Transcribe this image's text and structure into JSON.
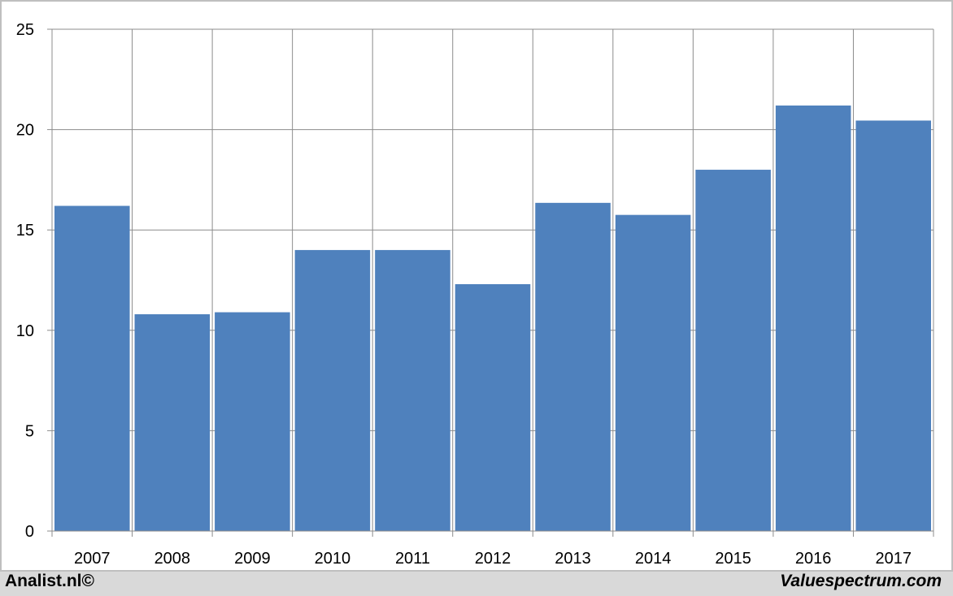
{
  "chart_data": {
    "type": "bar",
    "categories": [
      "2007",
      "2008",
      "2009",
      "2010",
      "2011",
      "2012",
      "2013",
      "2014",
      "2015",
      "2016",
      "2017"
    ],
    "values": [
      16.2,
      10.8,
      10.9,
      14.0,
      14.0,
      12.3,
      16.35,
      15.75,
      18.0,
      21.2,
      20.45
    ],
    "title": "",
    "xlabel": "",
    "ylabel": "",
    "ylim": [
      0,
      25
    ],
    "yticks": [
      0,
      5,
      10,
      15,
      20,
      25
    ],
    "grid": true,
    "bar_color": "#4f81bd"
  },
  "footer": {
    "left_credit": "Analist.nl©",
    "right_credit": "Valuespectrum.com"
  }
}
